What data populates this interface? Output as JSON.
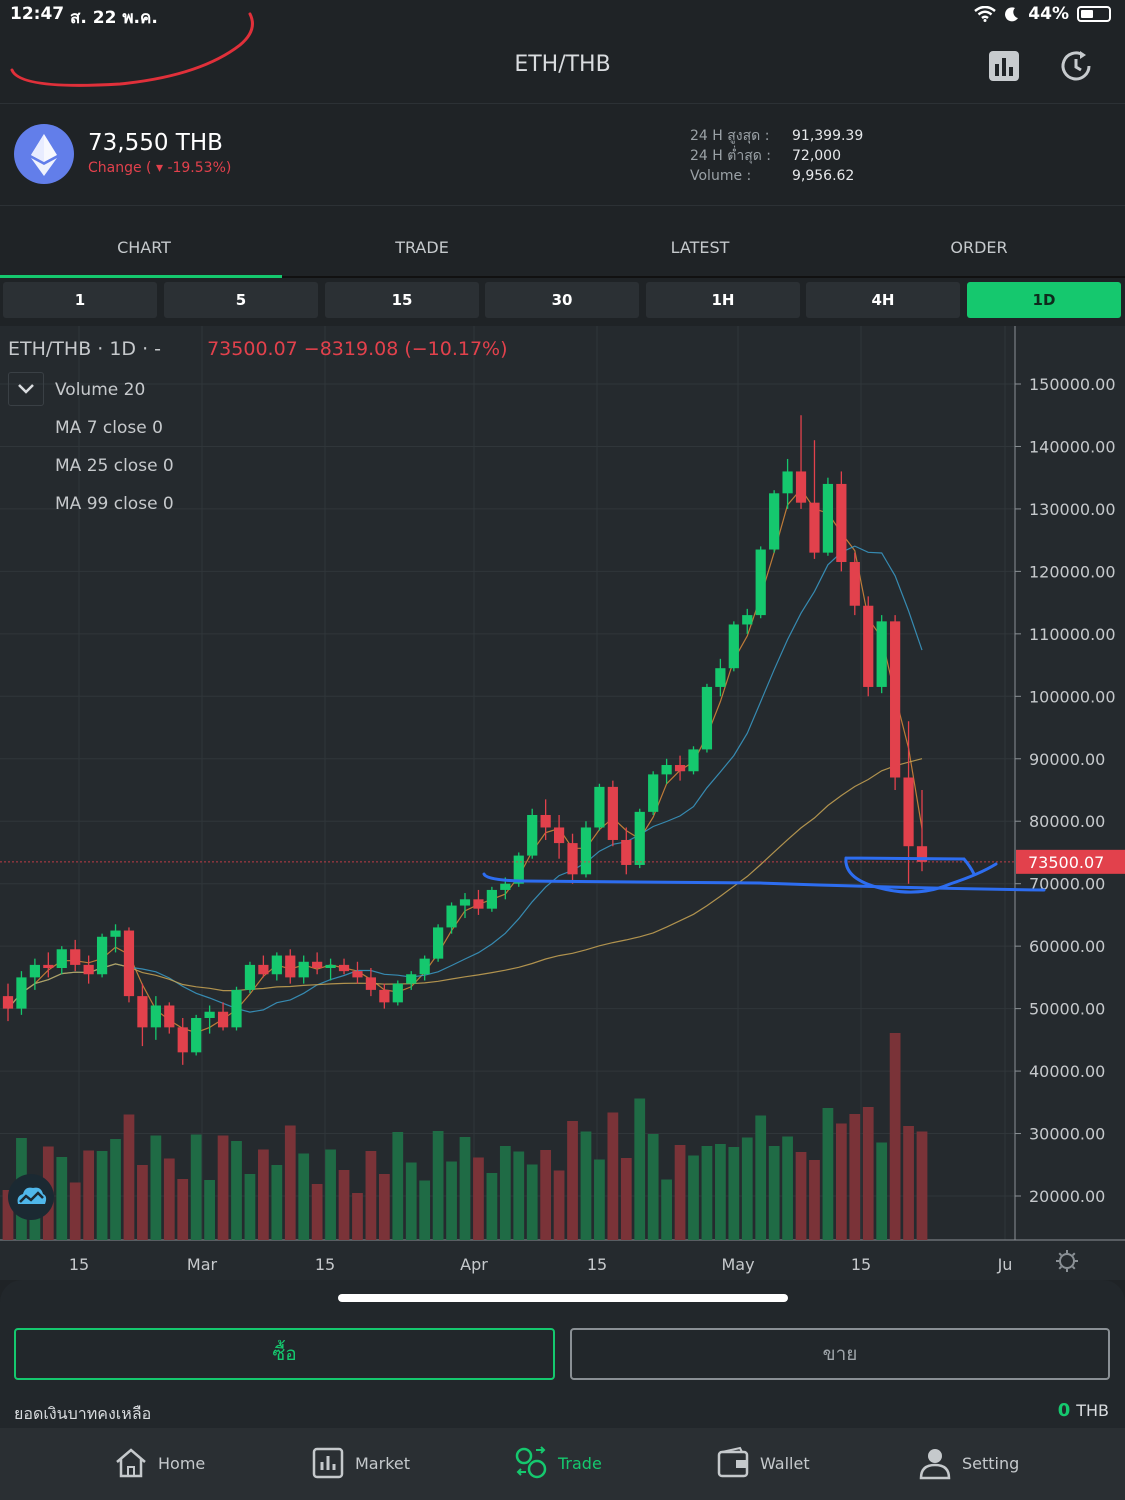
{
  "status_bar": {
    "time": "12:47",
    "date": "ส. 22 พ.ค.",
    "battery": "44%"
  },
  "header": {
    "title": "ETH/THB"
  },
  "ticker": {
    "price": "73,550 THB",
    "change": "Change ( ▾ -19.53%)",
    "stats": [
      {
        "label": "24 H สูงสุด :",
        "value": "91,399.39"
      },
      {
        "label": "24 H ต่ำสุด :",
        "value": "72,000"
      },
      {
        "label": "Volume :",
        "value": "9,956.62"
      }
    ]
  },
  "tabs": [
    "CHART",
    "TRADE",
    "LATEST",
    "ORDER"
  ],
  "intervals": [
    "1",
    "5",
    "15",
    "30",
    "1H",
    "4H",
    "1D"
  ],
  "active_interval": "1D",
  "legend": {
    "symbol": "ETH/THB · 1D · -",
    "ohlc": "73500.07  −8319.08 (−10.17%)",
    "indicators": [
      "Volume 20",
      "MA 7 close 0",
      "MA 25 close 0",
      "MA 99 close 0"
    ]
  },
  "colors": {
    "up": "#15c86e",
    "down": "#e2414c",
    "accent": "#15c86e",
    "annotation": "#2d6df0",
    "annotation_red": "#e0303a"
  },
  "chart_data": {
    "type": "candlestick",
    "interval": "1D",
    "last_price": "73500.07",
    "price_ticks": [
      "150000.00",
      "140000.00",
      "130000.00",
      "120000.00",
      "110000.00",
      "100000.00",
      "90000.00",
      "80000.00",
      "70000.00",
      "60000.00",
      "50000.00",
      "40000.00",
      "30000.00",
      "20000.00"
    ],
    "time_ticks": [
      "15",
      "Mar",
      "15",
      "Apr",
      "15",
      "May",
      "15",
      "Ju"
    ],
    "ylim": [
      15000,
      155000
    ],
    "ohlc_approx": [
      [
        52000,
        54000,
        48000,
        50000
      ],
      [
        50000,
        56000,
        49000,
        55000
      ],
      [
        55000,
        58000,
        53000,
        57000
      ],
      [
        57000,
        59000,
        55000,
        56500
      ],
      [
        56500,
        60000,
        55500,
        59500
      ],
      [
        59500,
        61000,
        56000,
        57000
      ],
      [
        57000,
        58500,
        54000,
        55500
      ],
      [
        55500,
        62000,
        55000,
        61500
      ],
      [
        61500,
        63500,
        59000,
        62500
      ],
      [
        62500,
        63000,
        51000,
        52000
      ],
      [
        52000,
        54000,
        44000,
        47000
      ],
      [
        47000,
        52000,
        45000,
        50500
      ],
      [
        50500,
        51000,
        46000,
        47000
      ],
      [
        47000,
        48500,
        41000,
        43000
      ],
      [
        43000,
        49000,
        42500,
        48500
      ],
      [
        48500,
        50500,
        46000,
        49500
      ],
      [
        49500,
        51000,
        46500,
        47000
      ],
      [
        47000,
        53500,
        46500,
        53000
      ],
      [
        53000,
        57500,
        52500,
        57000
      ],
      [
        57000,
        58500,
        55000,
        55500
      ],
      [
        55500,
        59000,
        54500,
        58500
      ],
      [
        58500,
        59500,
        54000,
        55000
      ],
      [
        55000,
        58500,
        54000,
        57500
      ],
      [
        57500,
        59000,
        55500,
        56500
      ],
      [
        56500,
        58000,
        54500,
        57000
      ],
      [
        57000,
        58000,
        55500,
        56000
      ],
      [
        56000,
        57500,
        54000,
        55000
      ],
      [
        55000,
        56500,
        52000,
        53000
      ],
      [
        53000,
        54000,
        50000,
        51000
      ],
      [
        51000,
        54500,
        50500,
        54000
      ],
      [
        54000,
        56000,
        53000,
        55500
      ],
      [
        55500,
        58500,
        54500,
        58000
      ],
      [
        58000,
        63500,
        57500,
        63000
      ],
      [
        63000,
        67000,
        62000,
        66500
      ],
      [
        66500,
        68500,
        64500,
        67500
      ],
      [
        67500,
        69000,
        65000,
        66000
      ],
      [
        66000,
        69500,
        65500,
        69000
      ],
      [
        69000,
        71000,
        67500,
        70000
      ],
      [
        70000,
        75000,
        69500,
        74500
      ],
      [
        74500,
        82000,
        74000,
        81000
      ],
      [
        81000,
        83500,
        77000,
        79000
      ],
      [
        79000,
        81000,
        74000,
        76500
      ],
      [
        76500,
        78000,
        70000,
        71500
      ],
      [
        71500,
        80000,
        71000,
        79000
      ],
      [
        79000,
        86000,
        78500,
        85500
      ],
      [
        85500,
        86500,
        76000,
        77000
      ],
      [
        77000,
        79000,
        71500,
        73000
      ],
      [
        73000,
        82000,
        72500,
        81500
      ],
      [
        81500,
        88000,
        81000,
        87500
      ],
      [
        87500,
        90000,
        86000,
        89000
      ],
      [
        89000,
        90500,
        86500,
        88000
      ],
      [
        88000,
        92000,
        87500,
        91500
      ],
      [
        91500,
        102000,
        91000,
        101500
      ],
      [
        101500,
        106000,
        100000,
        104500
      ],
      [
        104500,
        112000,
        104000,
        111500
      ],
      [
        111500,
        114000,
        110000,
        113000
      ],
      [
        113000,
        124000,
        112500,
        123500
      ],
      [
        123500,
        133000,
        123000,
        132500
      ],
      [
        132500,
        138000,
        130000,
        136000
      ],
      [
        136000,
        145000,
        130000,
        131000
      ],
      [
        131000,
        141000,
        122000,
        123000
      ],
      [
        123000,
        135000,
        122500,
        134000
      ],
      [
        134000,
        136000,
        120000,
        121500
      ],
      [
        121500,
        123000,
        113000,
        114500
      ],
      [
        114500,
        116000,
        100000,
        101500
      ],
      [
        101500,
        113000,
        100500,
        112000
      ],
      [
        112000,
        113000,
        85000,
        87000
      ],
      [
        87000,
        96000,
        70000,
        76000
      ],
      [
        76000,
        85000,
        72000,
        73500
      ]
    ],
    "series": [
      {
        "name": "MA 7"
      },
      {
        "name": "MA 25"
      },
      {
        "name": "MA 99"
      }
    ]
  },
  "sheet": {
    "buy": "ซื้อ",
    "sell": "ขาย",
    "balance_label": "ยอดเงินบาทคงเหลือ",
    "balance_value": "0",
    "balance_unit": "THB"
  },
  "bottom_nav": [
    {
      "label": "Home",
      "icon": "home-icon"
    },
    {
      "label": "Market",
      "icon": "market-icon"
    },
    {
      "label": "Trade",
      "icon": "trade-icon"
    },
    {
      "label": "Wallet",
      "icon": "wallet-icon"
    },
    {
      "label": "Setting",
      "icon": "user-icon"
    }
  ],
  "active_nav": "Trade"
}
